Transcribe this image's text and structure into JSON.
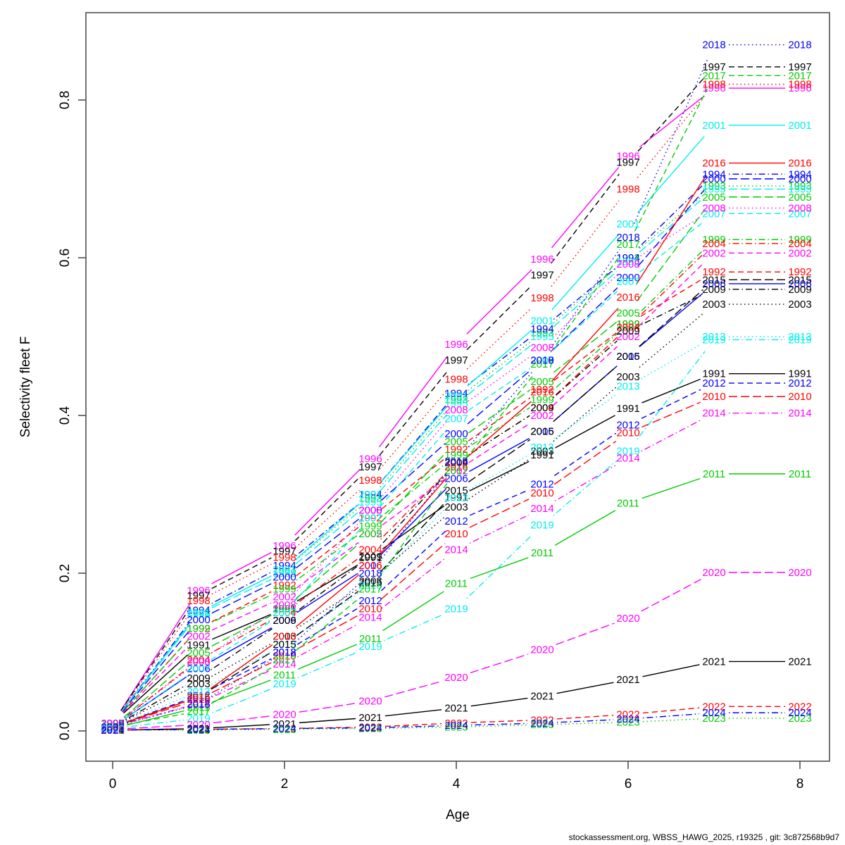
{
  "footer": {
    "text": "stockassessment.org, WBSS_HAWG_2025, r19325 , git: 3c872568b9d7"
  },
  "chart_data": {
    "type": "line",
    "title": "",
    "xlabel": "Age",
    "ylabel": "Selectivity fleet F",
    "x": [
      0,
      1,
      2,
      3,
      4,
      5,
      6,
      7,
      8
    ],
    "xticks": [
      "0",
      "2",
      "4",
      "6",
      "8"
    ],
    "xtick_values": [
      0,
      2,
      4,
      6,
      8
    ],
    "yticks": [
      "0.0",
      "0.2",
      "0.4",
      "0.6",
      "0.8"
    ],
    "ytick_values": [
      0.0,
      0.2,
      0.4,
      0.6,
      0.8
    ],
    "xlim": [
      0,
      8
    ],
    "ylim": [
      0,
      0.9
    ],
    "grid": false,
    "legend_position": "none",
    "point_labels": "year text printed at every data point (R matplot type='b')",
    "palette": {
      "black": "#000000",
      "red": "#FF0000",
      "green": "#00CC00",
      "blue": "#0000FF",
      "cyan": "#00EEEE",
      "magenta": "#FF00FF"
    },
    "series": [
      {
        "name": "1991",
        "color": "#000000",
        "linetype": "solid",
        "values": [
          0.01,
          0.109,
          0.155,
          0.22,
          0.296,
          0.35,
          0.409,
          0.453,
          0.453
        ]
      },
      {
        "name": "1992",
        "color": "#FF0000",
        "linetype": "dashed",
        "values": [
          0.01,
          0.13,
          0.185,
          0.27,
          0.357,
          0.433,
          0.516,
          0.582,
          0.582
        ]
      },
      {
        "name": "1993",
        "color": "#00CC00",
        "linetype": "dotted",
        "values": [
          0.01,
          0.15,
          0.205,
          0.295,
          0.42,
          0.505,
          0.6,
          0.691,
          0.691
        ]
      },
      {
        "name": "1994",
        "color": "#0000FF",
        "linetype": "dotdash",
        "values": [
          0.01,
          0.153,
          0.21,
          0.3,
          0.428,
          0.51,
          0.6,
          0.706,
          0.706
        ]
      },
      {
        "name": "1995",
        "color": "#00EEEE",
        "linetype": "longdash",
        "values": [
          0.01,
          0.148,
          0.2,
          0.29,
          0.415,
          0.5,
          0.595,
          0.687,
          0.687
        ]
      },
      {
        "name": "1996",
        "color": "#FF00FF",
        "linetype": "solid",
        "values": [
          0.01,
          0.178,
          0.235,
          0.345,
          0.49,
          0.598,
          0.729,
          0.815,
          0.815
        ]
      },
      {
        "name": "1997",
        "color": "#000000",
        "linetype": "dashed",
        "values": [
          0.01,
          0.172,
          0.228,
          0.335,
          0.47,
          0.578,
          0.721,
          0.842,
          0.842
        ]
      },
      {
        "name": "1998",
        "color": "#FF0000",
        "linetype": "dotted",
        "values": [
          0.01,
          0.165,
          0.22,
          0.318,
          0.446,
          0.549,
          0.687,
          0.82,
          0.82
        ]
      },
      {
        "name": "1999",
        "color": "#00CC00",
        "linetype": "dotdash",
        "values": [
          0.01,
          0.13,
          0.18,
          0.26,
          0.35,
          0.42,
          0.516,
          0.623,
          0.623
        ]
      },
      {
        "name": "2000",
        "color": "#0000FF",
        "linetype": "longdash",
        "values": [
          0.01,
          0.141,
          0.195,
          0.28,
          0.377,
          0.47,
          0.575,
          0.7,
          0.7
        ]
      },
      {
        "name": "2001",
        "color": "#00EEEE",
        "linetype": "solid",
        "values": [
          0.01,
          0.15,
          0.205,
          0.3,
          0.425,
          0.52,
          0.643,
          0.768,
          0.768
        ]
      },
      {
        "name": "2002",
        "color": "#FF00FF",
        "linetype": "dashed",
        "values": [
          0.01,
          0.12,
          0.17,
          0.25,
          0.33,
          0.4,
          0.5,
          0.606,
          0.606
        ]
      },
      {
        "name": "2003",
        "color": "#000000",
        "linetype": "dotted",
        "values": [
          0.005,
          0.06,
          0.12,
          0.19,
          0.284,
          0.355,
          0.449,
          0.541,
          0.541
        ]
      },
      {
        "name": "2004",
        "color": "#FF0000",
        "linetype": "dotdash",
        "values": [
          0.005,
          0.09,
          0.15,
          0.23,
          0.34,
          0.41,
          0.512,
          0.618,
          0.618
        ]
      },
      {
        "name": "2005",
        "color": "#00CC00",
        "linetype": "longdash",
        "values": [
          0.005,
          0.099,
          0.155,
          0.25,
          0.367,
          0.443,
          0.53,
          0.677,
          0.677
        ]
      },
      {
        "name": "2006",
        "color": "#0000FF",
        "linetype": "solid",
        "values": [
          0.005,
          0.079,
          0.14,
          0.21,
          0.32,
          0.38,
          0.475,
          0.567,
          0.567
        ]
      },
      {
        "name": "2007",
        "color": "#00EEEE",
        "linetype": "dashed",
        "values": [
          0.005,
          0.08,
          0.15,
          0.27,
          0.396,
          0.47,
          0.57,
          0.656,
          0.656
        ]
      },
      {
        "name": "2008",
        "color": "#FF00FF",
        "linetype": "dotted",
        "values": [
          0.005,
          0.088,
          0.16,
          0.28,
          0.407,
          0.486,
          0.592,
          0.663,
          0.663
        ]
      },
      {
        "name": "2009",
        "color": "#000000",
        "linetype": "dotdash",
        "values": [
          0.005,
          0.067,
          0.14,
          0.221,
          0.34,
          0.41,
          0.507,
          0.56,
          0.56
        ]
      },
      {
        "name": "2010",
        "color": "#FF0000",
        "linetype": "longdash",
        "values": [
          0.005,
          0.04,
          0.095,
          0.155,
          0.25,
          0.302,
          0.378,
          0.424,
          0.424
        ]
      },
      {
        "name": "2011",
        "color": "#00CC00",
        "linetype": "solid",
        "values": [
          0.003,
          0.03,
          0.071,
          0.117,
          0.187,
          0.226,
          0.289,
          0.326,
          0.326
        ]
      },
      {
        "name": "2012",
        "color": "#0000FF",
        "linetype": "dashed",
        "values": [
          0.005,
          0.045,
          0.1,
          0.165,
          0.266,
          0.313,
          0.388,
          0.441,
          0.441
        ]
      },
      {
        "name": "2013",
        "color": "#00EEEE",
        "linetype": "dotted",
        "values": [
          0.005,
          0.05,
          0.11,
          0.185,
          0.296,
          0.36,
          0.437,
          0.5,
          0.5
        ]
      },
      {
        "name": "2014",
        "color": "#FF00FF",
        "linetype": "dotdash",
        "values": [
          0.005,
          0.035,
          0.085,
          0.144,
          0.23,
          0.282,
          0.346,
          0.403,
          0.403
        ]
      },
      {
        "name": "2015",
        "color": "#000000",
        "linetype": "longdash",
        "values": [
          0.005,
          0.043,
          0.11,
          0.188,
          0.305,
          0.38,
          0.475,
          0.572,
          0.572
        ]
      },
      {
        "name": "2016",
        "color": "#FF0000",
        "linetype": "solid",
        "values": [
          0.005,
          0.043,
          0.12,
          0.21,
          0.335,
          0.43,
          0.55,
          0.72,
          0.72
        ]
      },
      {
        "name": "2017",
        "color": "#00CC00",
        "linetype": "dashed",
        "values": [
          0.005,
          0.025,
          0.09,
          0.18,
          0.33,
          0.465,
          0.617,
          0.831,
          0.831
        ]
      },
      {
        "name": "2018",
        "color": "#0000FF",
        "linetype": "dotted",
        "values": [
          0.005,
          0.034,
          0.1,
          0.2,
          0.342,
          0.47,
          0.626,
          0.87,
          0.87
        ]
      },
      {
        "name": "2019",
        "color": "#00EEEE",
        "linetype": "dotdash",
        "values": [
          0.003,
          0.016,
          0.06,
          0.107,
          0.155,
          0.261,
          0.355,
          0.496,
          0.496
        ]
      },
      {
        "name": "2020",
        "color": "#FF00FF",
        "linetype": "longdash",
        "values": [
          0.002,
          0.008,
          0.021,
          0.038,
          0.068,
          0.103,
          0.143,
          0.201,
          0.201
        ]
      },
      {
        "name": "2021",
        "color": "#000000",
        "linetype": "solid",
        "values": [
          0.001,
          0.003,
          0.009,
          0.017,
          0.029,
          0.044,
          0.065,
          0.088,
          0.088
        ]
      },
      {
        "name": "2022",
        "color": "#FF0000",
        "linetype": "dashed",
        "values": [
          0.001,
          0.002,
          0.003,
          0.005,
          0.01,
          0.014,
          0.021,
          0.031,
          0.031
        ]
      },
      {
        "name": "2023",
        "color": "#00CC00",
        "linetype": "dotted",
        "values": [
          0.001,
          0.001,
          0.002,
          0.003,
          0.005,
          0.008,
          0.011,
          0.016,
          0.016
        ]
      },
      {
        "name": "2024",
        "color": "#0000FF",
        "linetype": "dotdash",
        "values": [
          0.001,
          0.002,
          0.003,
          0.004,
          0.007,
          0.01,
          0.015,
          0.023,
          0.023
        ]
      }
    ]
  }
}
